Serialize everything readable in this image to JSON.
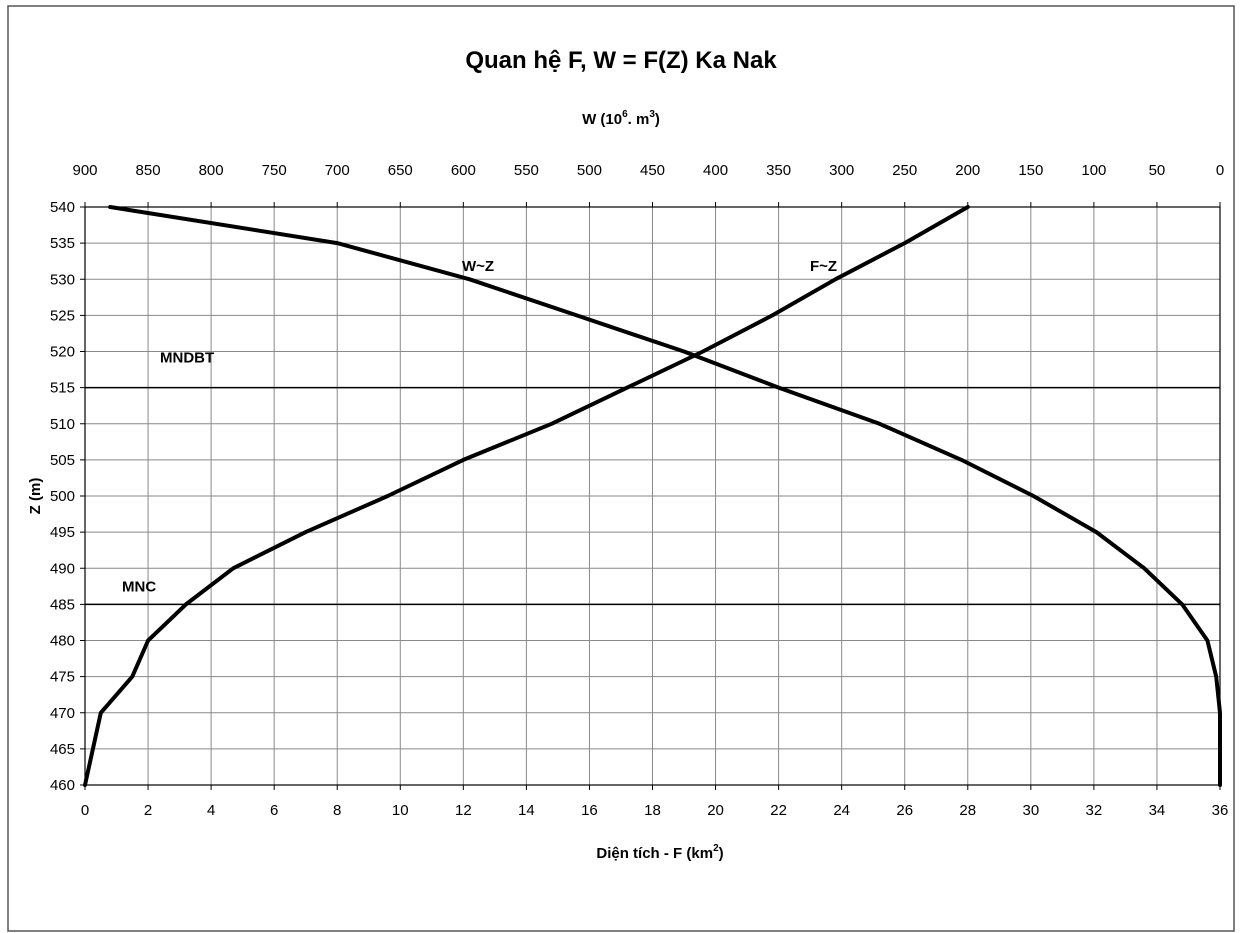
{
  "chart_data": {
    "type": "line",
    "title": "Quan hệ F, W = F(Z) Ka Nak",
    "x_bottom": {
      "label_base": "Diện tích - F (km",
      "label_sup": "2",
      "label_end": ")",
      "range": [
        0,
        36
      ],
      "ticks": [
        0,
        2,
        4,
        6,
        8,
        10,
        12,
        14,
        16,
        18,
        20,
        22,
        24,
        26,
        28,
        30,
        32,
        34,
        36
      ]
    },
    "x_top": {
      "label_base": "W (10",
      "label_sup1": "6",
      "label_mid": ". m",
      "label_sup2": "3",
      "label_end": ")",
      "range": [
        900,
        0
      ],
      "reversed": true,
      "ticks": [
        900,
        850,
        800,
        750,
        700,
        650,
        600,
        550,
        500,
        450,
        400,
        350,
        300,
        250,
        200,
        150,
        100,
        50,
        0
      ]
    },
    "y": {
      "label": "Z (m)",
      "range": [
        460,
        540
      ],
      "ticks": [
        460,
        465,
        470,
        475,
        480,
        485,
        490,
        495,
        500,
        505,
        510,
        515,
        520,
        525,
        530,
        535,
        540
      ]
    },
    "grid": true,
    "series": [
      {
        "name": "F~Z",
        "axis": "bottom",
        "points": [
          [
            0,
            460
          ],
          [
            0.5,
            470
          ],
          [
            1.5,
            475
          ],
          [
            2.0,
            480
          ],
          [
            3.2,
            485
          ],
          [
            4.7,
            490
          ],
          [
            7.0,
            495
          ],
          [
            9.6,
            500
          ],
          [
            12.0,
            505
          ],
          [
            14.8,
            510
          ],
          [
            17.2,
            515
          ],
          [
            19.6,
            520
          ],
          [
            21.8,
            525
          ],
          [
            23.8,
            530
          ],
          [
            26.0,
            535
          ],
          [
            28.0,
            540
          ]
        ]
      },
      {
        "name": "W~Z",
        "axis": "top",
        "points": [
          [
            0,
            460
          ],
          [
            0,
            470
          ],
          [
            3,
            475
          ],
          [
            10,
            480
          ],
          [
            30,
            485
          ],
          [
            60,
            490
          ],
          [
            98,
            495
          ],
          [
            148,
            500
          ],
          [
            205,
            505
          ],
          [
            270,
            510
          ],
          [
            350,
            515
          ],
          [
            425,
            520
          ],
          [
            510,
            525
          ],
          [
            595,
            530
          ],
          [
            700,
            535
          ],
          [
            880,
            540
          ]
        ]
      }
    ],
    "reference_lines": [
      {
        "label": "MNDBT",
        "z": 515
      },
      {
        "label": "MNC",
        "z": 485
      }
    ]
  }
}
